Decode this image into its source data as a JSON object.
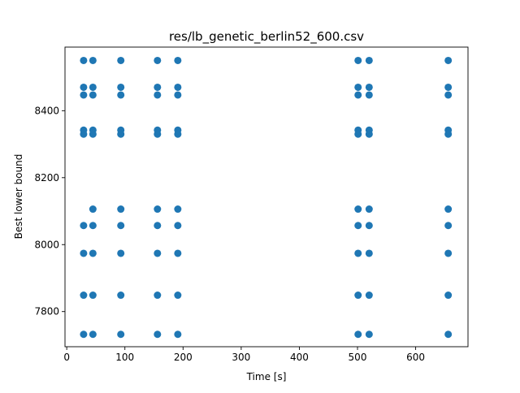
{
  "chart_data": {
    "type": "scatter",
    "title": "res/lb_genetic_berlin52_600.csv",
    "xlabel": "Time [s]",
    "ylabel": "Best lower bound",
    "xlim": [
      -3,
      690
    ],
    "ylim": [
      7695,
      8590
    ],
    "xticks": [
      0,
      100,
      200,
      300,
      400,
      500,
      600
    ],
    "yticks": [
      7800,
      8000,
      8200,
      8400
    ],
    "marker_color": "#1f77b4",
    "grid": false,
    "legend": "none",
    "x_values": [
      29,
      45,
      93,
      156,
      191,
      501,
      520,
      656
    ],
    "y_levels_by_x": [
      [
        8550,
        8470,
        8447,
        8342,
        8330,
        8057,
        7974,
        7849,
        7732
      ],
      [
        8550,
        8470,
        8447,
        8342,
        8330,
        8106,
        8057,
        7974,
        7849,
        7732
      ],
      [
        8550,
        8470,
        8447,
        8342,
        8330,
        8106,
        8057,
        7974,
        7849,
        7732
      ],
      [
        8550,
        8470,
        8447,
        8342,
        8330,
        8106,
        8057,
        7974,
        7849,
        7732
      ],
      [
        8550,
        8470,
        8447,
        8342,
        8330,
        8106,
        8057,
        7974,
        7849,
        7732
      ],
      [
        8550,
        8470,
        8447,
        8342,
        8330,
        8106,
        8057,
        7974,
        7849,
        7732
      ],
      [
        8550,
        8470,
        8447,
        8342,
        8330,
        8106,
        8057,
        7974,
        7849,
        7732
      ],
      [
        8550,
        8470,
        8447,
        8342,
        8330,
        8106,
        8057,
        7974,
        7849,
        7732
      ]
    ]
  }
}
